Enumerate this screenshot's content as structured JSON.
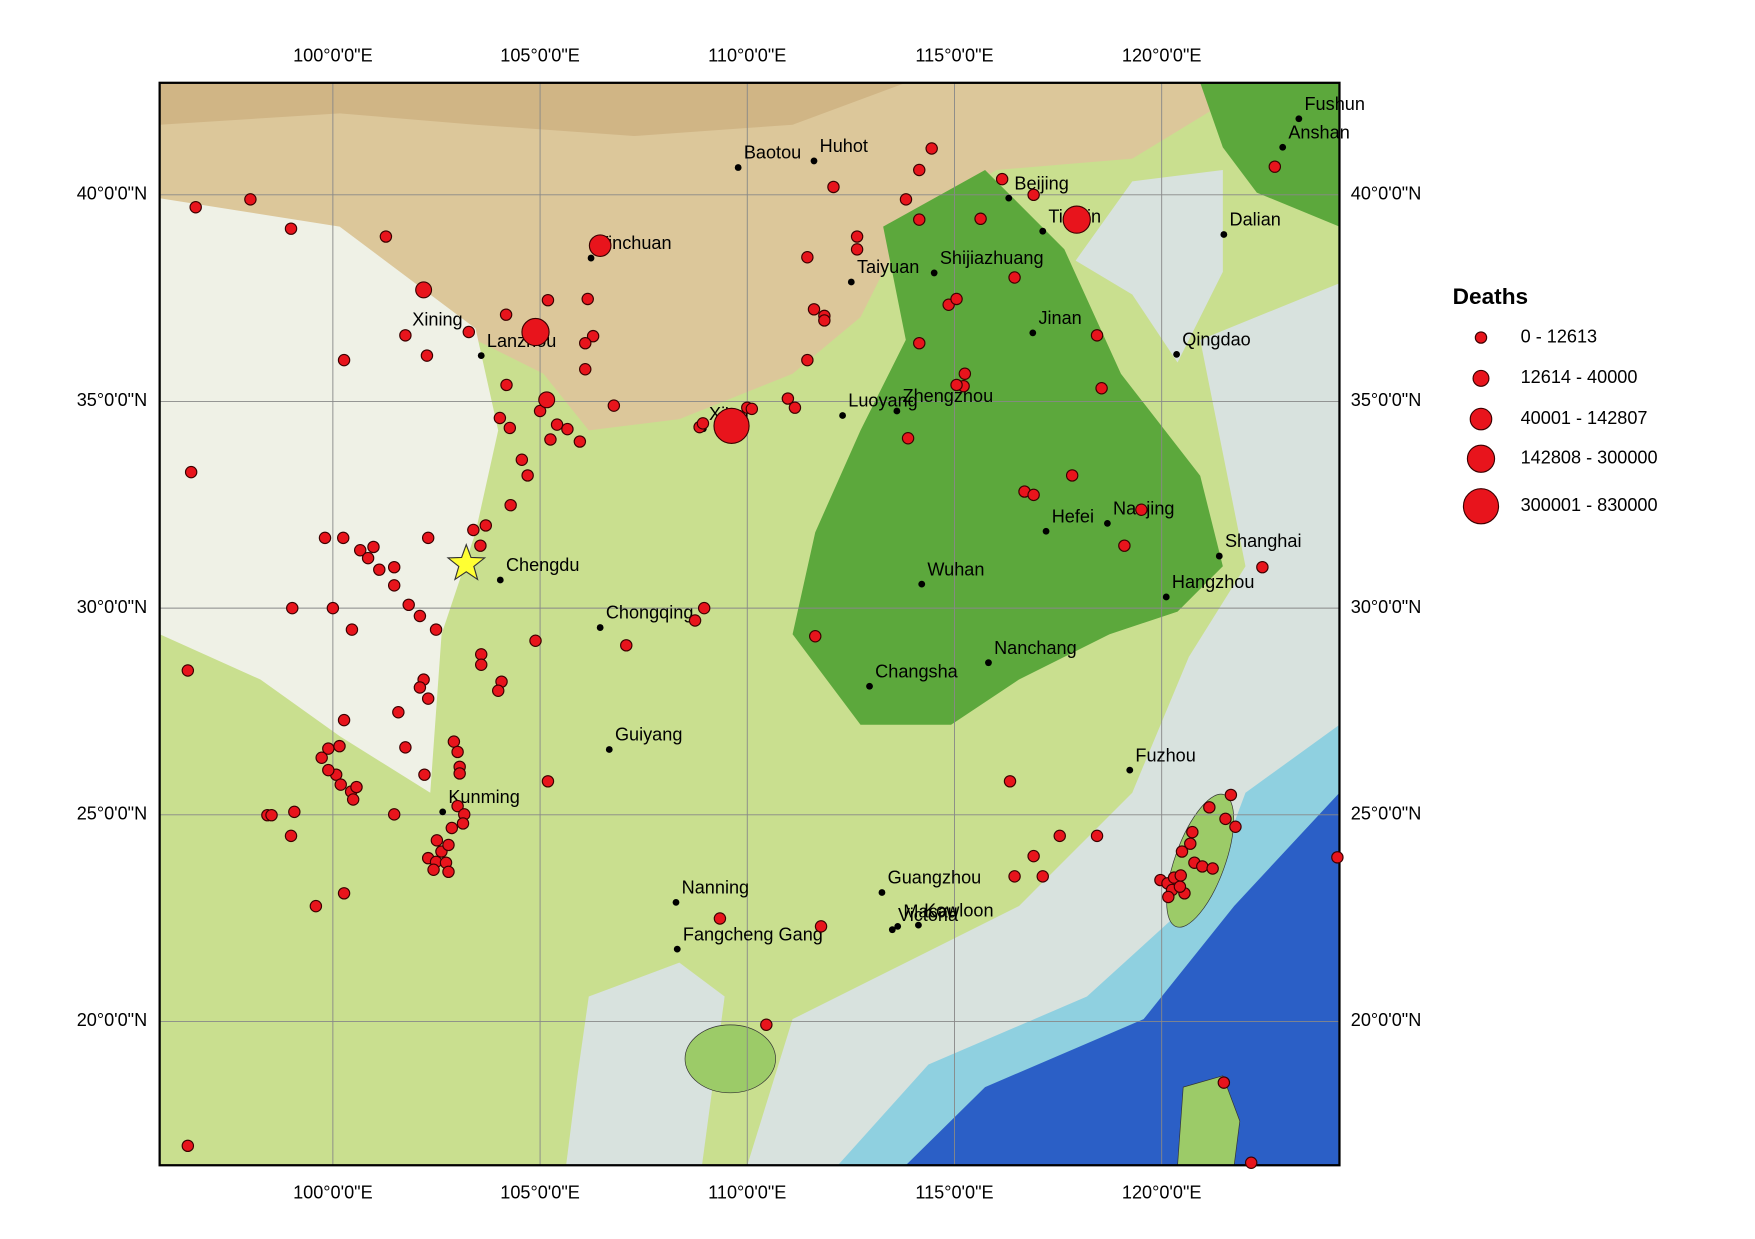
{
  "map": {
    "lonlim": [
      95.82,
      124.29
    ],
    "latlim": [
      16.52,
      42.71
    ],
    "lonticks": [
      {
        "value": 100,
        "label": "100°0'0\"E"
      },
      {
        "value": 105,
        "label": "105°0'0\"E"
      },
      {
        "value": 110,
        "label": "110°0'0\"E"
      },
      {
        "value": 115,
        "label": "115°0'0\"E"
      },
      {
        "value": 120,
        "label": "120°0'0\"E"
      }
    ],
    "latticks": [
      {
        "value": 40,
        "label": "40°0'0\"N"
      },
      {
        "value": 35,
        "label": "35°0'0\"N"
      },
      {
        "value": 30,
        "label": "30°0'0\"N"
      },
      {
        "value": 25,
        "label": "25°0'0\"N"
      },
      {
        "value": 20,
        "label": "20°0'0\"N"
      }
    ],
    "epicenter": {
      "lon": 103.22,
      "lat": 31.07
    },
    "cities": [
      {
        "name": "Fushun",
        "lon": 123.31,
        "lat": 41.84
      },
      {
        "name": "Anshan",
        "lon": 122.92,
        "lat": 41.15
      },
      {
        "name": "Baotou",
        "lon": 109.78,
        "lat": 40.66
      },
      {
        "name": "Huhot",
        "lon": 111.61,
        "lat": 40.82
      },
      {
        "name": "Beijing",
        "lon": 116.31,
        "lat": 39.92
      },
      {
        "name": "Tianjin",
        "lon": 117.13,
        "lat": 39.12
      },
      {
        "name": "Dalian",
        "lon": 121.5,
        "lat": 39.04
      },
      {
        "name": "Yinchuan",
        "lon": 106.23,
        "lat": 38.47
      },
      {
        "name": "Shijiazhuang",
        "lon": 114.51,
        "lat": 38.11
      },
      {
        "name": "Taiyuan",
        "lon": 112.51,
        "lat": 37.89
      },
      {
        "name": "Xining",
        "lon": 101.78,
        "lat": 36.62
      },
      {
        "name": "Lanzhou",
        "lon": 103.58,
        "lat": 36.11
      },
      {
        "name": "Jinan",
        "lon": 116.89,
        "lat": 36.66
      },
      {
        "name": "Qingdao",
        "lon": 120.36,
        "lat": 36.14
      },
      {
        "name": "Luoyang",
        "lon": 112.3,
        "lat": 34.66
      },
      {
        "name": "Zhengzhou",
        "lon": 113.61,
        "lat": 34.77
      },
      {
        "name": "Xi'an",
        "lon": 108.94,
        "lat": 34.34
      },
      {
        "name": "Hefei",
        "lon": 117.21,
        "lat": 31.86
      },
      {
        "name": "Nanjing",
        "lon": 118.69,
        "lat": 32.05
      },
      {
        "name": "Shanghai",
        "lon": 121.39,
        "lat": 31.26
      },
      {
        "name": "Chengdu",
        "lon": 104.04,
        "lat": 30.68
      },
      {
        "name": "Wuhan",
        "lon": 114.21,
        "lat": 30.58
      },
      {
        "name": "Hangzhou",
        "lon": 120.11,
        "lat": 30.27
      },
      {
        "name": "Chongqing",
        "lon": 106.45,
        "lat": 29.53
      },
      {
        "name": "Nanchang",
        "lon": 115.82,
        "lat": 28.68
      },
      {
        "name": "Changsha",
        "lon": 112.95,
        "lat": 28.11
      },
      {
        "name": "Guiyang",
        "lon": 106.67,
        "lat": 26.58
      },
      {
        "name": "Fuzhou",
        "lon": 119.23,
        "lat": 26.08
      },
      {
        "name": "Kunming",
        "lon": 102.65,
        "lat": 25.07
      },
      {
        "name": "Nanning",
        "lon": 108.28,
        "lat": 22.88
      },
      {
        "name": "Guangzhou",
        "lon": 113.25,
        "lat": 23.12
      },
      {
        "name": "Fangcheng Gang",
        "lon": 108.31,
        "lat": 21.75
      },
      {
        "name": "Macau",
        "lon": 113.63,
        "lat": 22.3
      },
      {
        "name": "Victoria",
        "lon": 113.5,
        "lat": 22.22
      },
      {
        "name": "Kowloon",
        "lon": 114.13,
        "lat": 22.33
      }
    ],
    "legend": {
      "title": "Deaths",
      "classes": [
        {
          "label": "0 - 12613",
          "points": [
            {
              "lon": 96.69,
              "lat": 39.7
            },
            {
              "lon": 98.01,
              "lat": 39.89
            },
            {
              "lon": 98.99,
              "lat": 39.18
            },
            {
              "lon": 101.28,
              "lat": 38.99
            },
            {
              "lon": 100.27,
              "lat": 36.0
            },
            {
              "lon": 101.75,
              "lat": 36.6
            },
            {
              "lon": 102.27,
              "lat": 36.11
            },
            {
              "lon": 103.28,
              "lat": 36.68
            },
            {
              "lon": 104.18,
              "lat": 37.1
            },
            {
              "lon": 105.19,
              "lat": 37.45
            },
            {
              "lon": 106.15,
              "lat": 37.48
            },
            {
              "lon": 106.28,
              "lat": 36.58
            },
            {
              "lon": 106.09,
              "lat": 36.41
            },
            {
              "lon": 106.09,
              "lat": 35.78
            },
            {
              "lon": 106.78,
              "lat": 34.9
            },
            {
              "lon": 104.19,
              "lat": 35.4
            },
            {
              "lon": 104.27,
              "lat": 34.36
            },
            {
              "lon": 104.03,
              "lat": 34.6
            },
            {
              "lon": 105.0,
              "lat": 34.77
            },
            {
              "lon": 105.41,
              "lat": 34.44
            },
            {
              "lon": 105.66,
              "lat": 34.33
            },
            {
              "lon": 105.25,
              "lat": 34.08
            },
            {
              "lon": 105.96,
              "lat": 34.03
            },
            {
              "lon": 104.56,
              "lat": 33.59
            },
            {
              "lon": 104.7,
              "lat": 33.21
            },
            {
              "lon": 104.29,
              "lat": 32.49
            },
            {
              "lon": 103.69,
              "lat": 32.0
            },
            {
              "lon": 103.39,
              "lat": 31.89
            },
            {
              "lon": 103.56,
              "lat": 31.51
            },
            {
              "lon": 102.3,
              "lat": 31.7
            },
            {
              "lon": 99.81,
              "lat": 31.7
            },
            {
              "lon": 100.25,
              "lat": 31.7
            },
            {
              "lon": 100.66,
              "lat": 31.4
            },
            {
              "lon": 100.85,
              "lat": 31.21
            },
            {
              "lon": 100.98,
              "lat": 31.48
            },
            {
              "lon": 101.12,
              "lat": 30.93
            },
            {
              "lon": 101.48,
              "lat": 30.99
            },
            {
              "lon": 101.48,
              "lat": 30.55
            },
            {
              "lon": 101.83,
              "lat": 30.08
            },
            {
              "lon": 102.1,
              "lat": 29.81
            },
            {
              "lon": 102.49,
              "lat": 29.48
            },
            {
              "lon": 100.46,
              "lat": 29.48
            },
            {
              "lon": 100.0,
              "lat": 30.0
            },
            {
              "lon": 99.02,
              "lat": 30.0
            },
            {
              "lon": 96.58,
              "lat": 33.29
            },
            {
              "lon": 96.5,
              "lat": 28.49
            },
            {
              "lon": 104.89,
              "lat": 29.21
            },
            {
              "lon": 107.08,
              "lat": 29.1
            },
            {
              "lon": 108.74,
              "lat": 29.7
            },
            {
              "lon": 108.96,
              "lat": 30.0
            },
            {
              "lon": 103.58,
              "lat": 28.88
            },
            {
              "lon": 103.58,
              "lat": 28.63
            },
            {
              "lon": 104.07,
              "lat": 28.22
            },
            {
              "lon": 103.99,
              "lat": 28.0
            },
            {
              "lon": 102.19,
              "lat": 28.27
            },
            {
              "lon": 102.1,
              "lat": 28.08
            },
            {
              "lon": 102.3,
              "lat": 27.81
            },
            {
              "lon": 101.58,
              "lat": 27.48
            },
            {
              "lon": 100.27,
              "lat": 27.29
            },
            {
              "lon": 102.92,
              "lat": 26.77
            },
            {
              "lon": 103.01,
              "lat": 26.52
            },
            {
              "lon": 103.06,
              "lat": 26.16
            },
            {
              "lon": 103.06,
              "lat": 26.0
            },
            {
              "lon": 101.75,
              "lat": 26.63
            },
            {
              "lon": 102.21,
              "lat": 25.97
            },
            {
              "lon": 100.16,
              "lat": 26.66
            },
            {
              "lon": 99.89,
              "lat": 26.6
            },
            {
              "lon": 99.73,
              "lat": 26.38
            },
            {
              "lon": 100.08,
              "lat": 25.97
            },
            {
              "lon": 99.89,
              "lat": 26.08
            },
            {
              "lon": 100.19,
              "lat": 25.73
            },
            {
              "lon": 100.44,
              "lat": 25.56
            },
            {
              "lon": 100.57,
              "lat": 25.67
            },
            {
              "lon": 100.49,
              "lat": 25.37
            },
            {
              "lon": 101.48,
              "lat": 25.01
            },
            {
              "lon": 99.07,
              "lat": 25.07
            },
            {
              "lon": 98.42,
              "lat": 24.99
            },
            {
              "lon": 98.52,
              "lat": 24.99
            },
            {
              "lon": 98.99,
              "lat": 24.49
            },
            {
              "lon": 103.01,
              "lat": 25.21
            },
            {
              "lon": 103.17,
              "lat": 25.01
            },
            {
              "lon": 103.14,
              "lat": 24.79
            },
            {
              "lon": 102.87,
              "lat": 24.68
            },
            {
              "lon": 102.51,
              "lat": 24.38
            },
            {
              "lon": 102.62,
              "lat": 24.11
            },
            {
              "lon": 102.79,
              "lat": 24.27
            },
            {
              "lon": 102.3,
              "lat": 23.95
            },
            {
              "lon": 102.49,
              "lat": 23.86
            },
            {
              "lon": 102.73,
              "lat": 23.84
            },
            {
              "lon": 102.43,
              "lat": 23.67
            },
            {
              "lon": 102.79,
              "lat": 23.62
            },
            {
              "lon": 99.59,
              "lat": 22.79
            },
            {
              "lon": 100.27,
              "lat": 23.1
            },
            {
              "lon": 105.19,
              "lat": 25.81
            },
            {
              "lon": 96.5,
              "lat": 16.99
            },
            {
              "lon": 114.45,
              "lat": 41.12
            },
            {
              "lon": 112.08,
              "lat": 40.19
            },
            {
              "lon": 114.15,
              "lat": 40.6
            },
            {
              "lon": 113.83,
              "lat": 39.89
            },
            {
              "lon": 114.15,
              "lat": 39.4
            },
            {
              "lon": 112.65,
              "lat": 38.99
            },
            {
              "lon": 112.65,
              "lat": 38.68
            },
            {
              "lon": 111.45,
              "lat": 38.49
            },
            {
              "lon": 111.61,
              "lat": 37.23
            },
            {
              "lon": 111.86,
              "lat": 37.07
            },
            {
              "lon": 111.86,
              "lat": 36.96
            },
            {
              "lon": 111.45,
              "lat": 36.0
            },
            {
              "lon": 114.15,
              "lat": 36.41
            },
            {
              "lon": 114.86,
              "lat": 37.34
            },
            {
              "lon": 115.05,
              "lat": 37.48
            },
            {
              "lon": 115.63,
              "lat": 39.42
            },
            {
              "lon": 116.15,
              "lat": 40.38
            },
            {
              "lon": 116.91,
              "lat": 40.0
            },
            {
              "lon": 116.45,
              "lat": 38.0
            },
            {
              "lon": 118.44,
              "lat": 36.6
            },
            {
              "lon": 118.55,
              "lat": 35.32
            },
            {
              "lon": 115.25,
              "lat": 35.67
            },
            {
              "lon": 115.22,
              "lat": 35.37
            },
            {
              "lon": 115.05,
              "lat": 35.4
            },
            {
              "lon": 113.88,
              "lat": 34.11
            },
            {
              "lon": 110.98,
              "lat": 35.07
            },
            {
              "lon": 111.15,
              "lat": 34.85
            },
            {
              "lon": 110.0,
              "lat": 34.85
            },
            {
              "lon": 110.11,
              "lat": 34.82
            },
            {
              "lon": 108.85,
              "lat": 34.38
            },
            {
              "lon": 108.93,
              "lat": 34.47
            },
            {
              "lon": 116.69,
              "lat": 32.82
            },
            {
              "lon": 116.91,
              "lat": 32.74
            },
            {
              "lon": 117.84,
              "lat": 33.21
            },
            {
              "lon": 119.51,
              "lat": 32.38
            },
            {
              "lon": 119.1,
              "lat": 31.51
            },
            {
              "lon": 122.43,
              "lat": 30.99
            },
            {
              "lon": 111.64,
              "lat": 29.32
            },
            {
              "lon": 116.34,
              "lat": 25.81
            },
            {
              "lon": 116.91,
              "lat": 24.0
            },
            {
              "lon": 117.13,
              "lat": 23.51
            },
            {
              "lon": 116.45,
              "lat": 23.51
            },
            {
              "lon": 117.54,
              "lat": 24.49
            },
            {
              "lon": 118.44,
              "lat": 24.49
            },
            {
              "lon": 111.78,
              "lat": 22.3
            },
            {
              "lon": 109.34,
              "lat": 22.49
            },
            {
              "lon": 110.46,
              "lat": 19.92
            },
            {
              "lon": 122.73,
              "lat": 40.68
            },
            {
              "lon": 121.5,
              "lat": 18.52
            },
            {
              "lon": 122.16,
              "lat": 16.58
            },
            {
              "lon": 124.24,
              "lat": 23.97
            },
            {
              "lon": 121.67,
              "lat": 25.48
            },
            {
              "lon": 121.15,
              "lat": 25.18
            },
            {
              "lon": 121.54,
              "lat": 24.9
            },
            {
              "lon": 121.78,
              "lat": 24.71
            },
            {
              "lon": 120.74,
              "lat": 24.58
            },
            {
              "lon": 120.69,
              "lat": 24.3
            },
            {
              "lon": 120.49,
              "lat": 24.11
            },
            {
              "lon": 120.79,
              "lat": 23.84
            },
            {
              "lon": 120.98,
              "lat": 23.75
            },
            {
              "lon": 121.23,
              "lat": 23.7
            },
            {
              "lon": 119.97,
              "lat": 23.42
            },
            {
              "lon": 120.14,
              "lat": 23.34
            },
            {
              "lon": 120.3,
              "lat": 23.48
            },
            {
              "lon": 120.46,
              "lat": 23.53
            },
            {
              "lon": 120.25,
              "lat": 23.18
            },
            {
              "lon": 120.55,
              "lat": 23.1
            },
            {
              "lon": 120.16,
              "lat": 23.01
            },
            {
              "lon": 120.44,
              "lat": 23.26
            }
          ]
        },
        {
          "label": "12614 - 40000",
          "points": [
            {
              "lon": 102.19,
              "lat": 37.7
            },
            {
              "lon": 105.16,
              "lat": 35.04
            }
          ]
        },
        {
          "label": "40001 - 142807",
          "points": [
            {
              "lon": 106.45,
              "lat": 38.77
            }
          ]
        },
        {
          "label": "142808 - 300000",
          "points": [
            {
              "lon": 104.89,
              "lat": 36.68
            },
            {
              "lon": 117.95,
              "lat": 39.4
            }
          ]
        },
        {
          "label": "300001 - 830000",
          "points": [
            {
              "lon": 109.62,
              "lat": 34.41
            }
          ]
        }
      ]
    }
  }
}
